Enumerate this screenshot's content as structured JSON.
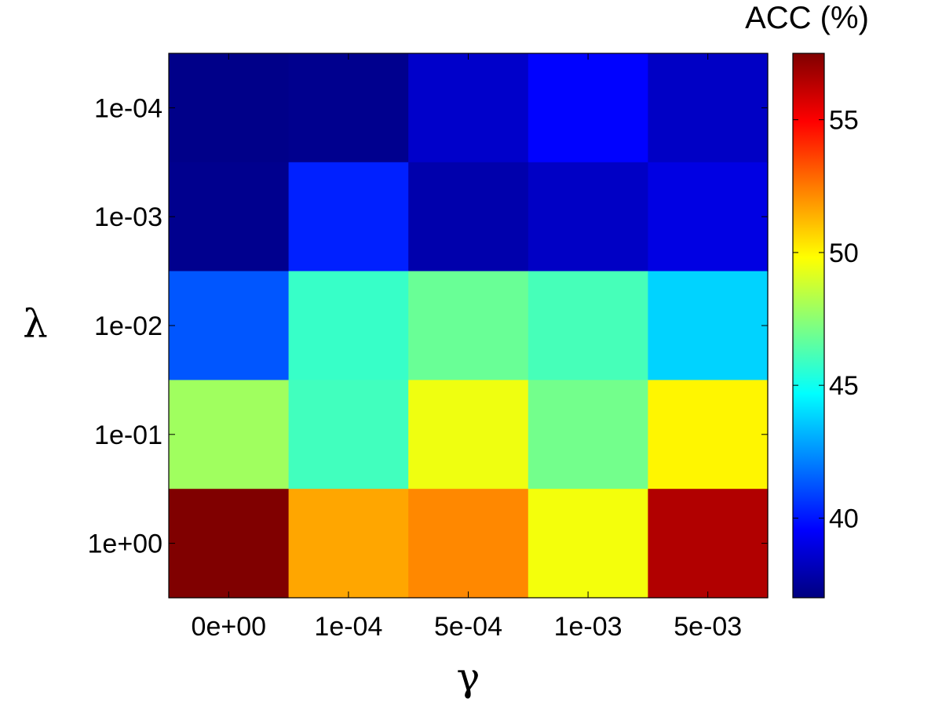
{
  "chart_data": {
    "type": "heatmap",
    "xlabel": "γ",
    "ylabel": "λ",
    "x_categories": [
      "0e+00",
      "1e-04",
      "5e-04",
      "1e-03",
      "5e-03"
    ],
    "y_categories": [
      "1e-04",
      "1e-03",
      "1e-02",
      "1e-01",
      "1e+00"
    ],
    "values": [
      [
        37.2,
        37.3,
        38.5,
        39.6,
        38.4
      ],
      [
        37.3,
        40.2,
        37.9,
        38.4,
        39.0
      ],
      [
        41.3,
        45.8,
        46.8,
        46.1,
        43.8
      ],
      [
        47.9,
        46.0,
        49.5,
        47.0,
        50.0
      ],
      [
        57.5,
        51.6,
        52.2,
        49.6,
        56.5
      ]
    ],
    "colorbar": {
      "title": "ACC (%)",
      "range": [
        37.0,
        57.5
      ],
      "ticks": [
        "40",
        "45",
        "50",
        "55"
      ],
      "colormap": "jet"
    }
  }
}
